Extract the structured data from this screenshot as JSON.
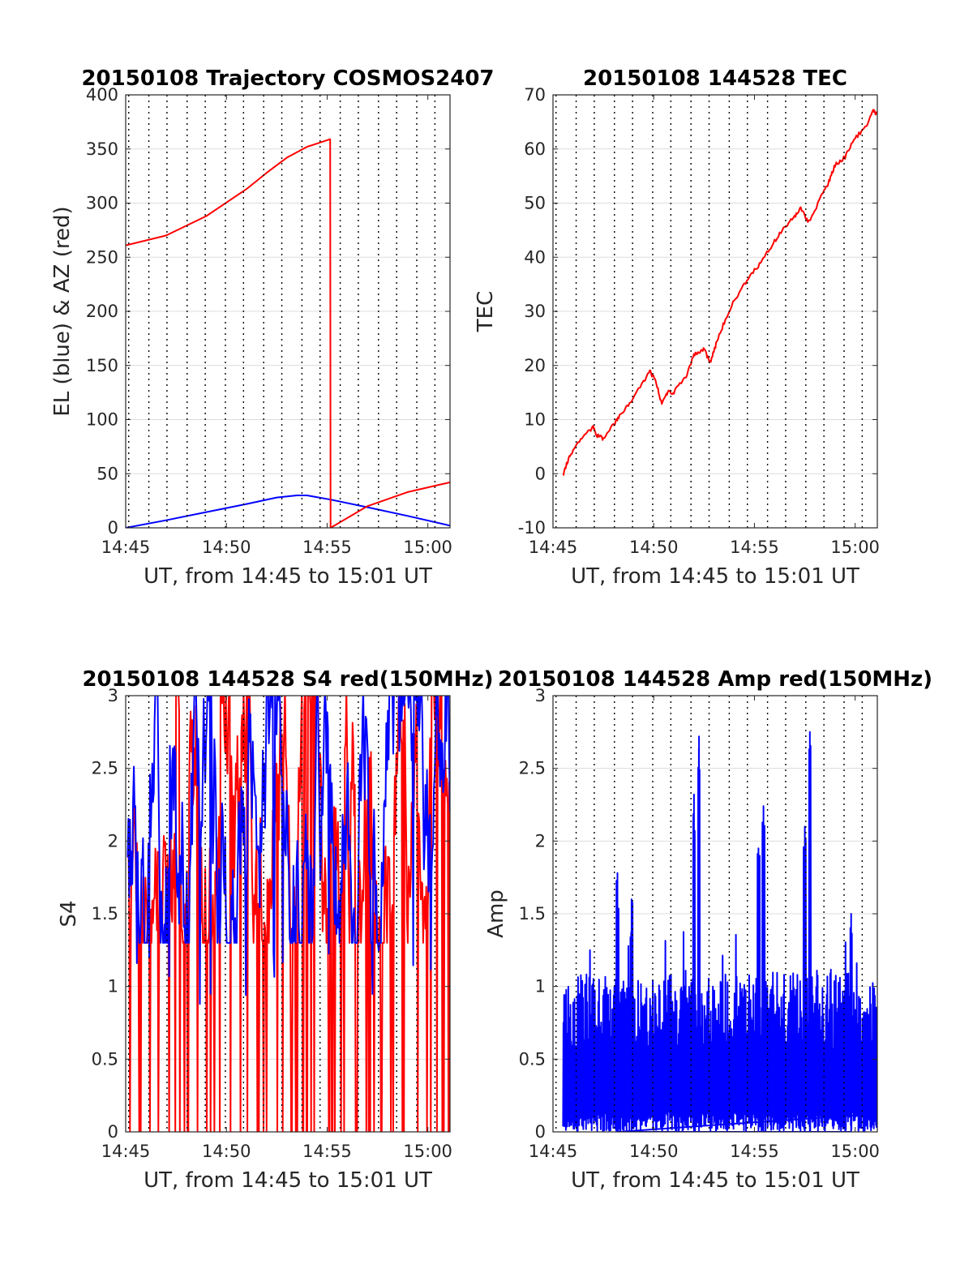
{
  "colors": {
    "red": "#ff0000",
    "blue": "#0000ff",
    "grid": "#dcdcdc",
    "axis": "#262626"
  },
  "chart_data": [
    {
      "type": "line",
      "title": "20150108 Trajectory COSMOS2407",
      "xlabel": "UT, from 14:45 to 15:01 UT",
      "ylabel": "EL (blue) & AZ (red)",
      "xlim": [
        0,
        16.1
      ],
      "ylim": [
        0,
        400
      ],
      "xticks": [
        0,
        5,
        10,
        15
      ],
      "xticklabels": [
        "14:45",
        "14:50",
        "14:55",
        "15:00"
      ],
      "yticks": [
        0,
        50,
        100,
        150,
        200,
        250,
        300,
        350,
        400
      ],
      "yticklabels": [
        "0",
        "50",
        "100",
        "150",
        "200",
        "250",
        "300",
        "350",
        "400"
      ],
      "grid": true,
      "series": [
        {
          "color": "#0000ff",
          "x": [
            0,
            2,
            4,
            6,
            7.5,
            8.5,
            9,
            10.2,
            12,
            14,
            16.1
          ],
          "y": [
            0,
            7,
            14.5,
            22,
            28,
            30,
            30,
            26,
            19,
            11,
            2
          ]
        },
        {
          "color": "#ff0000",
          "x": [
            0,
            2,
            4,
            6,
            7,
            8,
            9,
            10.15,
            10.17,
            12,
            14,
            16.1
          ],
          "y": [
            261,
            270,
            288,
            313,
            328,
            342,
            352,
            359,
            0,
            20,
            33,
            42
          ]
        }
      ]
    },
    {
      "type": "line",
      "title": "20150108 144528 TEC",
      "xlabel": "UT, from 14:45 to 15:01 UT",
      "ylabel": "TEC",
      "xlim": [
        0,
        16.1
      ],
      "ylim": [
        -10,
        70
      ],
      "xticks": [
        0,
        5,
        10,
        15
      ],
      "xticklabels": [
        "14:45",
        "14:50",
        "14:55",
        "15:00"
      ],
      "yticks": [
        -10,
        0,
        10,
        20,
        30,
        40,
        50,
        60,
        70
      ],
      "yticklabels": [
        "-10",
        "0",
        "10",
        "20",
        "30",
        "40",
        "50",
        "60",
        "70"
      ],
      "grid": true,
      "series": [
        {
          "color": "#ff0000",
          "x": [
            0.5,
            0.7,
            1,
            1.5,
            2,
            2.2,
            2.5,
            3,
            3.3,
            3.8,
            4.5,
            4.8,
            5.1,
            5.4,
            5.7,
            6,
            6.6,
            7,
            7.3,
            7.5,
            7.8,
            8.1,
            8.5,
            9,
            9.5,
            10,
            10.5,
            11,
            11.5,
            12,
            12.3,
            12.7,
            13.3,
            13.7,
            14,
            14.5,
            15,
            15.5,
            15.9,
            16.1
          ],
          "y": [
            -0.5,
            2,
            4.5,
            7,
            8.5,
            7,
            6.5,
            9,
            10.5,
            13,
            17,
            19,
            17,
            13,
            15,
            15,
            18,
            22,
            22.5,
            23,
            20.5,
            24,
            28,
            32,
            35,
            37.5,
            40,
            43,
            45.5,
            47.5,
            49,
            46.5,
            51,
            54,
            57,
            58.5,
            62,
            64,
            67,
            66.5
          ]
        }
      ]
    },
    {
      "type": "line",
      "title": "20150108 144528 S4 red(150MHz)",
      "xlabel": "UT, from 14:45 to 15:01 UT",
      "ylabel": "S4",
      "xlim": [
        0,
        16.1
      ],
      "ylim": [
        0,
        3
      ],
      "xticks": [
        0,
        5,
        10,
        15
      ],
      "xticklabels": [
        "14:45",
        "14:50",
        "14:55",
        "15:00"
      ],
      "yticks": [
        0,
        0.5,
        1,
        1.5,
        2,
        2.5,
        3
      ],
      "yticklabels": [
        "0",
        "0.5",
        "1",
        "1.5",
        "2",
        "2.5",
        "3"
      ],
      "grid": true,
      "series": [
        {
          "color": "#ff0000",
          "x_start": 0.1,
          "x_end": 16.1,
          "typical_min": 1.3,
          "typical_max": 3,
          "dropouts_to_zero": true
        },
        {
          "color": "#0000ff",
          "x_start": 0.1,
          "x_end": 16.1,
          "typical_min": 1.3,
          "typical_max": 3,
          "low_excursions_min": 0.85
        }
      ]
    },
    {
      "type": "line",
      "title": "20150108 144528 Amp red(150MHz)",
      "xlabel": "UT, from 14:45 to 15:01 UT",
      "ylabel": "Amp",
      "xlim": [
        0,
        16.1
      ],
      "ylim": [
        0,
        3
      ],
      "xticks": [
        0,
        5,
        10,
        15
      ],
      "xticklabels": [
        "14:45",
        "14:50",
        "14:55",
        "15:00"
      ],
      "yticks": [
        0,
        0.5,
        1,
        1.5,
        2,
        2.5,
        3
      ],
      "yticklabels": [
        "0",
        "0.5",
        "1",
        "1.5",
        "2",
        "2.5",
        "3"
      ],
      "grid": true,
      "series": [
        {
          "color": "#0000ff",
          "x_start": 0.5,
          "x_end": 16.1,
          "typical_peak": 1.1,
          "peaks": [
            {
              "x": 3.2,
              "y": 1.78
            },
            {
              "x": 3.9,
              "y": 1.6
            },
            {
              "x": 7.0,
              "y": 2.32
            },
            {
              "x": 7.25,
              "y": 2.72
            },
            {
              "x": 10.2,
              "y": 1.95
            },
            {
              "x": 10.45,
              "y": 2.24
            },
            {
              "x": 12.5,
              "y": 2.1
            },
            {
              "x": 12.75,
              "y": 2.75
            },
            {
              "x": 14.8,
              "y": 1.5
            }
          ]
        }
      ]
    }
  ]
}
